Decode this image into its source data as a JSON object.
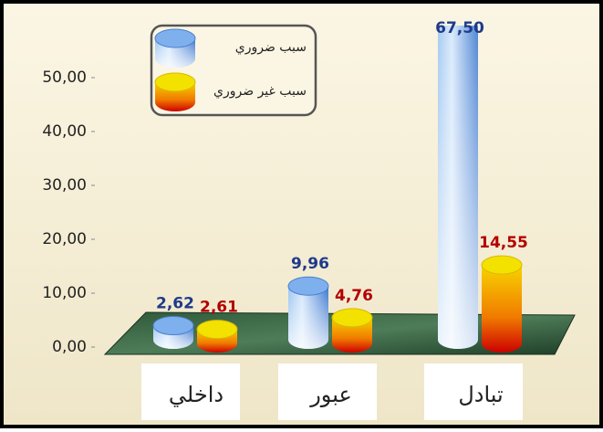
{
  "chart_data": {
    "type": "bar",
    "categories": [
      "داخلي",
      "عبور",
      "تبادل"
    ],
    "series": [
      {
        "name": "سبب ضروري",
        "color": "#4a86d8",
        "values": [
          2.62,
          9.96,
          67.5
        ],
        "value_labels": [
          "2,62",
          "9,96",
          "67,50"
        ]
      },
      {
        "name": "سبب غير ضروري",
        "color": "#e23a10",
        "values": [
          2.61,
          4.76,
          14.55
        ],
        "value_labels": [
          "2,61",
          "4,76",
          "14,55"
        ]
      }
    ],
    "ylim": [
      0,
      50
    ],
    "yticks": [
      {
        "value": 0,
        "label": "0,00"
      },
      {
        "value": 10,
        "label": "10,00"
      },
      {
        "value": 20,
        "label": "20,00"
      },
      {
        "value": 30,
        "label": "30,00"
      },
      {
        "value": 40,
        "label": "40,00"
      },
      {
        "value": 50,
        "label": "50,00"
      }
    ]
  }
}
